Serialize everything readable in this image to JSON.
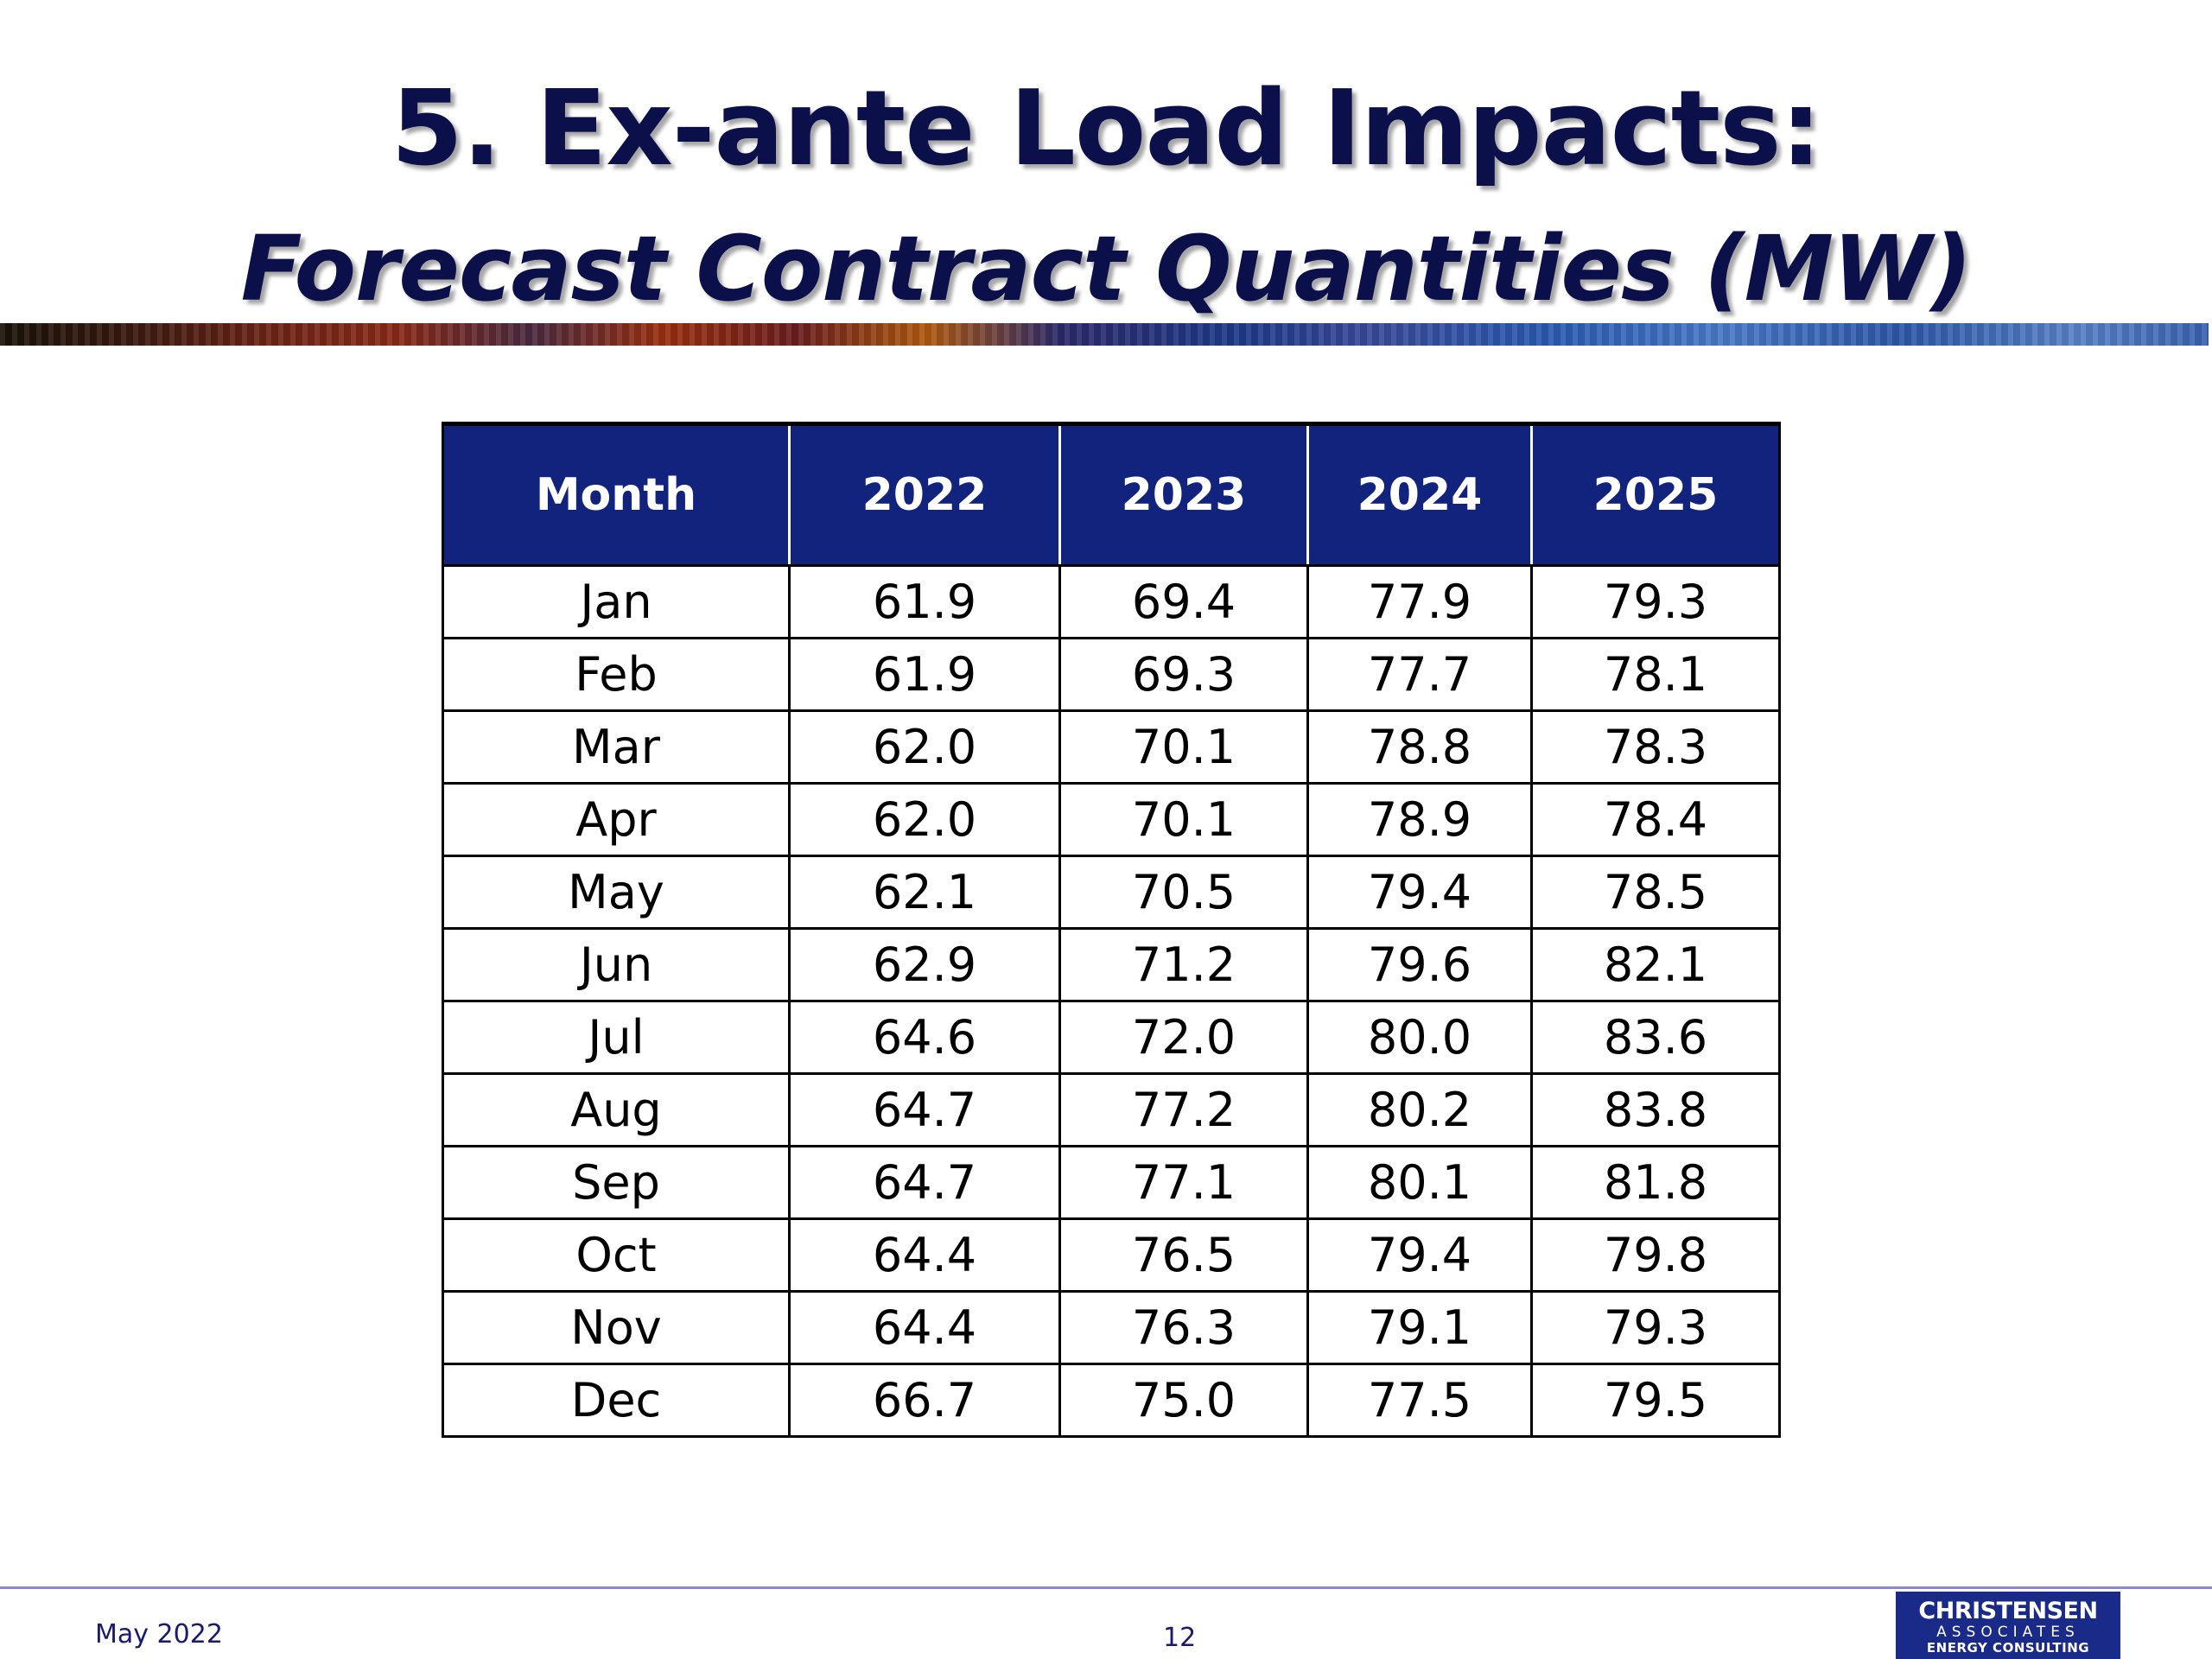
{
  "slide": {
    "title": "5. Ex-ante Load Impacts:",
    "subtitle": "Forecast Contract Quantities (MW)"
  },
  "table": {
    "headers": [
      "Month",
      "2022",
      "2023",
      "2024",
      "2025"
    ],
    "rows": [
      [
        "Jan",
        "61.9",
        "69.4",
        "77.9",
        "79.3"
      ],
      [
        "Feb",
        "61.9",
        "69.3",
        "77.7",
        "78.1"
      ],
      [
        "Mar",
        "62.0",
        "70.1",
        "78.8",
        "78.3"
      ],
      [
        "Apr",
        "62.0",
        "70.1",
        "78.9",
        "78.4"
      ],
      [
        "May",
        "62.1",
        "70.5",
        "79.4",
        "78.5"
      ],
      [
        "Jun",
        "62.9",
        "71.2",
        "79.6",
        "82.1"
      ],
      [
        "Jul",
        "64.6",
        "72.0",
        "80.0",
        "83.6"
      ],
      [
        "Aug",
        "64.7",
        "77.2",
        "80.2",
        "83.8"
      ],
      [
        "Sep",
        "64.7",
        "77.1",
        "80.1",
        "81.8"
      ],
      [
        "Oct",
        "64.4",
        "76.5",
        "79.4",
        "79.8"
      ],
      [
        "Nov",
        "64.4",
        "76.3",
        "79.1",
        "79.3"
      ],
      [
        "Dec",
        "66.7",
        "75.0",
        "77.5",
        "79.5"
      ]
    ]
  },
  "footer": {
    "date": "May 2022",
    "page": "12"
  },
  "logo": {
    "line1": "CHRISTENSEN",
    "line2": "ASSOCIATES",
    "line3": "ENERGY CONSULTING"
  },
  "colors": {
    "title": "#0b0f4a",
    "header_bg": "#12237e",
    "footer_rule": "#8c86d8",
    "logo_bg": "#1a2a88"
  }
}
